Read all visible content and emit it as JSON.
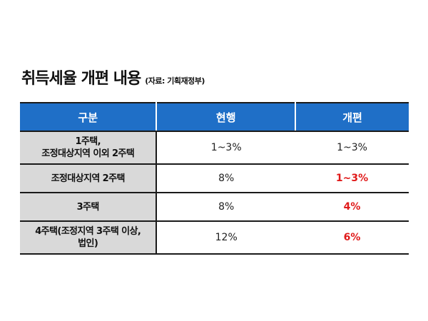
{
  "title": "취득세율 개편 내용",
  "source": "(자료: 기획재정부)",
  "colors": {
    "header_bg": "#1F6FC7",
    "label_bg": "#D9D9D9",
    "highlight": "#E01A1A"
  },
  "table": {
    "headers": [
      "구분",
      "현행",
      "개편"
    ],
    "rows": [
      {
        "label_line1": "1주택,",
        "label_line2": "조정대상지역 이외 2주택",
        "current": "1~3%",
        "reform": "1~3%",
        "reform_highlight": false
      },
      {
        "label_line1": "조정대상지역 2주택",
        "label_line2": "",
        "current": "8%",
        "reform": "1~3%",
        "reform_highlight": true
      },
      {
        "label_line1": "3주택",
        "label_line2": "",
        "current": "8%",
        "reform": "4%",
        "reform_highlight": true
      },
      {
        "label_line1": "4주택(조정지역 3주택 이상,",
        "label_line2": "법인)",
        "current": "12%",
        "reform": "6%",
        "reform_highlight": true
      }
    ]
  }
}
